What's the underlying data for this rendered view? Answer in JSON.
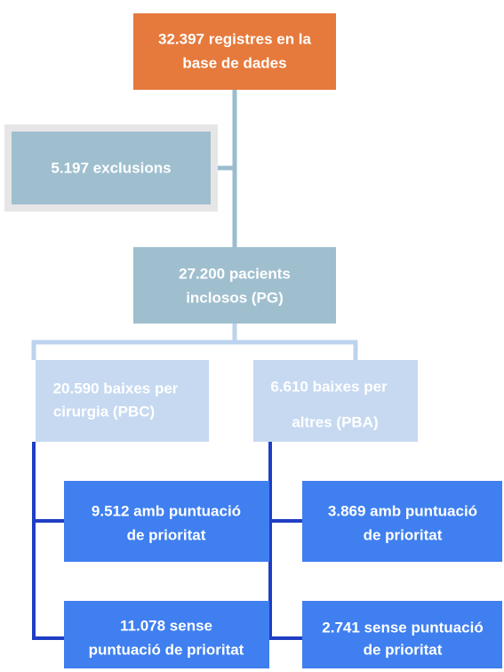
{
  "nodes": [
    {
      "lines": [
        "32.397 registres en la",
        "base de dades"
      ]
    },
    {
      "lines": [
        "5.197 exclusions"
      ]
    },
    {
      "lines": [
        "27.200 pacients",
        "inclosos (PG)"
      ]
    },
    {
      "lines": [
        "20.590 baixes per",
        "cirurgia (PBC)"
      ]
    },
    {
      "lines": [
        "6.610 baixes per",
        "altres (PBA)"
      ]
    },
    {
      "lines": [
        "9.512 amb puntuació",
        "de prioritat"
      ]
    },
    {
      "lines": [
        "11.078 sense",
        "puntuació de prioritat"
      ]
    },
    {
      "lines": [
        "3.869 amb puntuació",
        "de prioritat"
      ]
    },
    {
      "lines": [
        "2.741 sense puntuació",
        "de prioritat"
      ]
    }
  ]
}
